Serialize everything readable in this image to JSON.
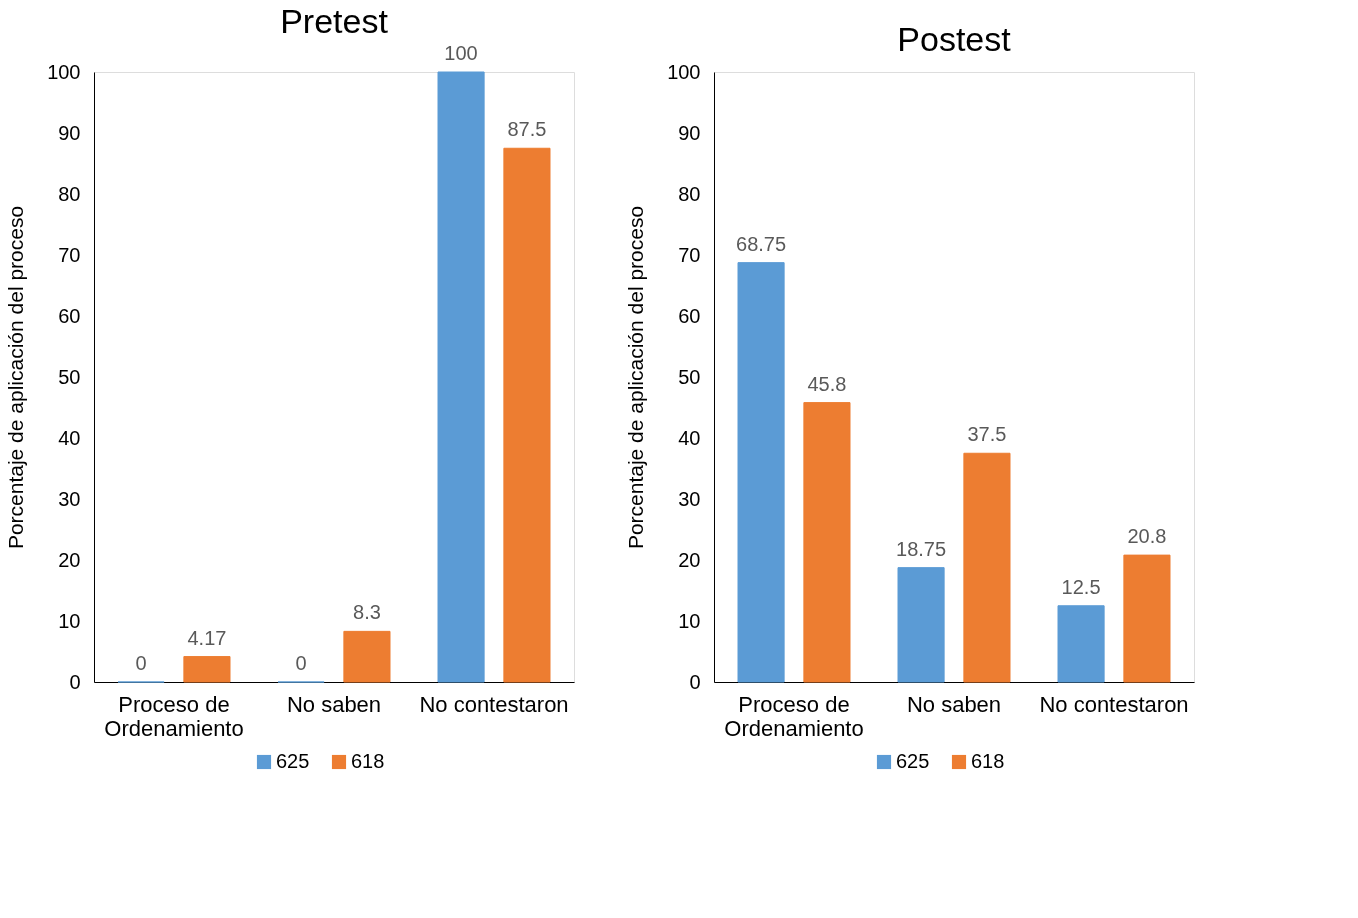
{
  "chart_data": [
    {
      "type": "bar",
      "title": "Pretest",
      "ylabel": "Porcentaje de aplicación del proceso",
      "categories": [
        "Proceso de Ordenamiento",
        "No saben",
        "No contestaron"
      ],
      "series": [
        {
          "name": "625",
          "color": "#5b9bd5",
          "values": [
            0,
            0,
            100
          ]
        },
        {
          "name": "618",
          "color": "#ed7d31",
          "values": [
            4.17,
            8.3,
            87.5
          ]
        }
      ],
      "ylim": [
        0,
        100
      ],
      "yticks": [
        0,
        10,
        20,
        30,
        40,
        50,
        60,
        70,
        80,
        90,
        100
      ],
      "data_labels": true,
      "legend": "bottom",
      "grid": false
    },
    {
      "type": "bar",
      "title": "Postest",
      "ylabel": "Porcentaje de aplicación del proceso",
      "categories": [
        "Proceso de Ordenamiento",
        "No saben",
        "No contestaron"
      ],
      "series": [
        {
          "name": "625",
          "color": "#5b9bd5",
          "values": [
            68.75,
            18.75,
            12.5
          ]
        },
        {
          "name": "618",
          "color": "#ed7d31",
          "values": [
            45.8,
            37.5,
            20.8
          ]
        }
      ],
      "ylim": [
        0,
        100
      ],
      "yticks": [
        0,
        10,
        20,
        30,
        40,
        50,
        60,
        70,
        80,
        90,
        100
      ],
      "data_labels": true,
      "legend": "bottom",
      "grid": false
    }
  ]
}
